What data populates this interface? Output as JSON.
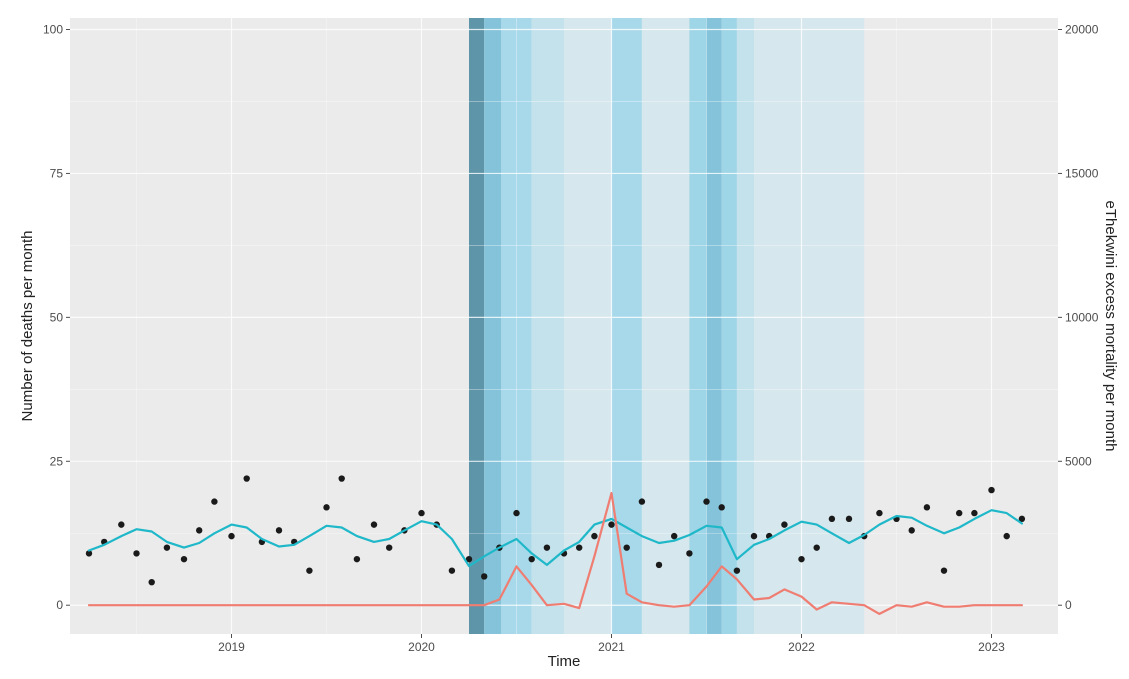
{
  "chart_data": {
    "type": "line",
    "title": "",
    "xlabel": "Time",
    "ylabel": "Number of deaths per month",
    "y2label": "eThekwini excess mortality per month",
    "xlim": [
      2018.15,
      2023.35
    ],
    "ylim": [
      -5,
      102
    ],
    "y2lim": [
      -1000,
      20400
    ],
    "x_ticks": [
      2019,
      2020,
      2021,
      2022,
      2023
    ],
    "x_tick_labels": [
      "2019",
      "2020",
      "2021",
      "2022",
      "2023"
    ],
    "y_ticks": [
      0,
      25,
      50,
      75,
      100
    ],
    "y_tick_labels": [
      "0",
      "25",
      "50",
      "75",
      "100"
    ],
    "y2_ticks": [
      0,
      5000,
      10000,
      15000,
      20000
    ],
    "y2_tick_labels": [
      "0",
      "5000",
      "10000",
      "15000",
      "20000"
    ],
    "grid": true,
    "background_color": "#ebebeb",
    "shaded_periods": [
      {
        "x0": 2020.25,
        "x1": 2020.33,
        "color": "#5f95a8"
      },
      {
        "x0": 2020.33,
        "x1": 2020.42,
        "color": "#84c3d9"
      },
      {
        "x0": 2020.42,
        "x1": 2020.58,
        "color": "#a7d9ea"
      },
      {
        "x0": 2020.58,
        "x1": 2020.75,
        "color": "#c3e2ec"
      },
      {
        "x0": 2020.75,
        "x1": 2021.0,
        "color": "#d6e7ed"
      },
      {
        "x0": 2021.0,
        "x1": 2021.16,
        "color": "#a7d9ea"
      },
      {
        "x0": 2021.16,
        "x1": 2021.41,
        "color": "#d6e7ed"
      },
      {
        "x0": 2021.41,
        "x1": 2021.5,
        "color": "#9ed5e7"
      },
      {
        "x0": 2021.5,
        "x1": 2021.58,
        "color": "#84c3d9"
      },
      {
        "x0": 2021.58,
        "x1": 2021.66,
        "color": "#9ed5e7"
      },
      {
        "x0": 2021.66,
        "x1": 2021.75,
        "color": "#c3e2ec"
      },
      {
        "x0": 2021.75,
        "x1": 2022.33,
        "color": "#d6e7ed"
      }
    ],
    "series": [
      {
        "kind": "points",
        "axis": "left",
        "color": "#1a1a1a",
        "x": [
          2018.25,
          2018.33,
          2018.42,
          2018.5,
          2018.58,
          2018.66,
          2018.75,
          2018.83,
          2018.91,
          2019.0,
          2019.08,
          2019.16,
          2019.25,
          2019.33,
          2019.41,
          2019.5,
          2019.58,
          2019.66,
          2019.75,
          2019.83,
          2019.91,
          2020.0,
          2020.08,
          2020.16,
          2020.25,
          2020.33,
          2020.41,
          2020.5,
          2020.58,
          2020.66,
          2020.75,
          2020.83,
          2020.91,
          2021.0,
          2021.08,
          2021.16,
          2021.25,
          2021.33,
          2021.41,
          2021.5,
          2021.58,
          2021.66,
          2021.75,
          2021.83,
          2021.91,
          2022.0,
          2022.08,
          2022.16,
          2022.25,
          2022.33,
          2022.41,
          2022.5,
          2022.58,
          2022.66,
          2022.75,
          2022.83,
          2022.91,
          2023.0,
          2023.08,
          2023.16
        ],
        "y": [
          9,
          11,
          14,
          9,
          4,
          10,
          8,
          13,
          18,
          12,
          22,
          11,
          13,
          11,
          6,
          17,
          22,
          8,
          14,
          10,
          13,
          16,
          14,
          6,
          8,
          5,
          10,
          16,
          8,
          10,
          9,
          10,
          12,
          14,
          10,
          18,
          7,
          12,
          9,
          18,
          17,
          6,
          12,
          12,
          14,
          8,
          10,
          15,
          15,
          12,
          16,
          15,
          13,
          17,
          6,
          16,
          16,
          20,
          12,
          15
        ]
      },
      {
        "kind": "line",
        "axis": "left",
        "color": "#1fb8c9",
        "x": [
          2018.25,
          2018.33,
          2018.42,
          2018.5,
          2018.58,
          2018.66,
          2018.75,
          2018.83,
          2018.91,
          2019.0,
          2019.08,
          2019.16,
          2019.25,
          2019.33,
          2019.41,
          2019.5,
          2019.58,
          2019.66,
          2019.75,
          2019.83,
          2019.91,
          2020.0,
          2020.08,
          2020.16,
          2020.25,
          2020.33,
          2020.41,
          2020.5,
          2020.58,
          2020.66,
          2020.75,
          2020.83,
          2020.91,
          2021.0,
          2021.08,
          2021.16,
          2021.25,
          2021.33,
          2021.41,
          2021.5,
          2021.58,
          2021.66,
          2021.75,
          2021.83,
          2021.91,
          2022.0,
          2022.08,
          2022.16,
          2022.25,
          2022.33,
          2022.41,
          2022.5,
          2022.58,
          2022.66,
          2022.75,
          2022.83,
          2022.91,
          2023.0,
          2023.08,
          2023.16
        ],
        "y": [
          9.5,
          10.5,
          12,
          13.2,
          12.8,
          11,
          10,
          10.8,
          12.5,
          14,
          13.5,
          11.5,
          10.2,
          10.5,
          12,
          13.8,
          13.5,
          12,
          11,
          11.5,
          13,
          14.6,
          14,
          11.5,
          6.8,
          8.5,
          10,
          11.5,
          9,
          7,
          9.5,
          11,
          14,
          15,
          13.5,
          12,
          10.8,
          11.2,
          12.2,
          13.8,
          13.5,
          8,
          10.5,
          11.5,
          13,
          14.5,
          14,
          12.5,
          10.8,
          12.2,
          14,
          15.5,
          15.2,
          13.8,
          12.5,
          13.5,
          15,
          16.5,
          16,
          14.2
        ]
      },
      {
        "kind": "line",
        "axis": "right",
        "color": "#ef7d72",
        "x": [
          2018.25,
          2018.5,
          2018.75,
          2019.0,
          2019.25,
          2019.5,
          2019.75,
          2020.0,
          2020.25,
          2020.33,
          2020.41,
          2020.5,
          2020.58,
          2020.66,
          2020.75,
          2020.83,
          2020.91,
          2021.0,
          2021.08,
          2021.16,
          2021.25,
          2021.33,
          2021.41,
          2021.5,
          2021.58,
          2021.66,
          2021.75,
          2021.83,
          2021.91,
          2022.0,
          2022.08,
          2022.16,
          2022.25,
          2022.33,
          2022.41,
          2022.5,
          2022.58,
          2022.66,
          2022.75,
          2022.83,
          2022.91,
          2023.0,
          2023.08,
          2023.16
        ],
        "y": [
          0,
          0,
          0,
          0,
          0,
          0,
          0,
          0,
          0,
          0,
          200,
          1350,
          700,
          0,
          50,
          -100,
          1700,
          3900,
          400,
          100,
          0,
          -50,
          0,
          650,
          1350,
          900,
          200,
          250,
          550,
          300,
          -150,
          100,
          50,
          0,
          -300,
          0,
          -50,
          100,
          -50,
          -50,
          0,
          0,
          0,
          0
        ]
      }
    ]
  }
}
